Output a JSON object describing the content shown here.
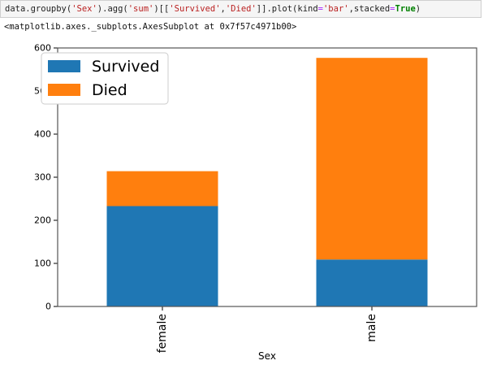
{
  "code_cell": {
    "prefix": "data.groupby(",
    "arg_sex": "'Sex'",
    "agg_open": ").agg(",
    "arg_sum": "'sum'",
    "idx_open": ")[[",
    "col_survived": "'Survived'",
    "comma": ",",
    "col_died": "'Died'",
    "plot_call": "]].plot(kind",
    "eq1": "=",
    "kind_val": "'bar'",
    "stacked_label": ",stacked",
    "eq2": "=",
    "true_kw": "True",
    "close": ")"
  },
  "output": {
    "repr": "<matplotlib.axes._subplots.AxesSubplot at 0x7f57c4971b00>"
  },
  "chart_data": {
    "type": "bar",
    "stacked": true,
    "categories": [
      "female",
      "male"
    ],
    "series": [
      {
        "name": "Survived",
        "values": [
          233,
          109
        ],
        "color": "#1f77b4"
      },
      {
        "name": "Died",
        "values": [
          81,
          468
        ],
        "color": "#ff7f0e"
      }
    ],
    "xlabel": "Sex",
    "ylabel": "",
    "ylim": [
      0,
      600
    ],
    "yticks": [
      0,
      100,
      200,
      300,
      400,
      500,
      600
    ],
    "legend_position": "top-left",
    "grid": false
  }
}
